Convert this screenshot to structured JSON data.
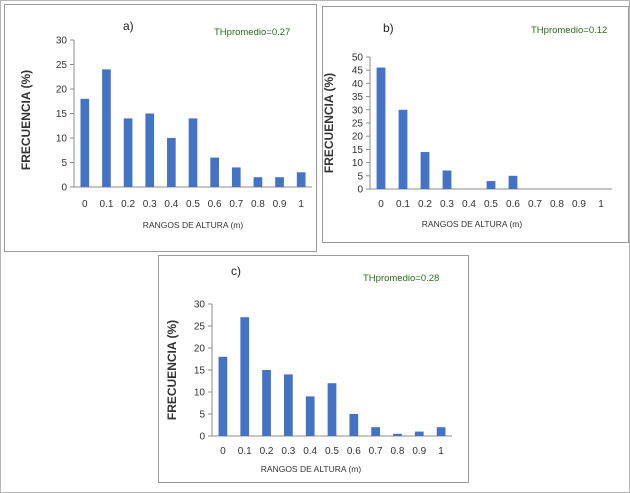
{
  "chart_data": [
    {
      "type": "bar",
      "panel_label": "a)",
      "annotation": "THpromedio=0.27",
      "categories": [
        "0",
        "0.1",
        "0.2",
        "0.3",
        "0.4",
        "0.5",
        "0.6",
        "0.7",
        "0.8",
        "0.9",
        "1"
      ],
      "values": [
        18,
        24,
        14,
        15,
        10,
        14,
        6,
        4,
        2,
        2,
        3
      ],
      "ylabel": "FRECUENCIA (%)",
      "xlabel": "RANGOS DE ALTURA (m)",
      "ylim": [
        0,
        30
      ],
      "yticks": [
        "0",
        "5",
        "10",
        "15",
        "20",
        "25",
        "30"
      ],
      "grid": false,
      "bar_color": "#4472c4",
      "annotation_color": "#2e6b1f"
    },
    {
      "type": "bar",
      "panel_label": "b)",
      "annotation": "THpromedio=0.12",
      "categories": [
        "0",
        "0.1",
        "0.2",
        "0.3",
        "0.4",
        "0.5",
        "0.6",
        "0.7",
        "0.8",
        "0.9",
        "1"
      ],
      "values": [
        46,
        30,
        14,
        7,
        0,
        3,
        5,
        0,
        0,
        0,
        0
      ],
      "ylabel": "FRECUENCIA (%)",
      "xlabel": "RANGOS DE ALTURA (m)",
      "ylim": [
        0,
        50
      ],
      "yticks": [
        "0",
        "5",
        "10",
        "15",
        "20",
        "25",
        "30",
        "35",
        "40",
        "45",
        "50"
      ],
      "grid": false,
      "bar_color": "#4472c4",
      "annotation_color": "#2e6b1f"
    },
    {
      "type": "bar",
      "panel_label": "c)",
      "annotation": "THpromedio=0.28",
      "categories": [
        "0",
        "0.1",
        "0.2",
        "0.3",
        "0.4",
        "0.5",
        "0.6",
        "0.7",
        "0.8",
        "0.9",
        "1"
      ],
      "values": [
        18,
        27,
        15,
        14,
        9,
        12,
        5,
        2,
        0.5,
        1,
        2
      ],
      "ylabel": "FRECUENCIA (%)",
      "xlabel": "RANGOS DE ALTURA (m)",
      "ylim": [
        0,
        30
      ],
      "yticks": [
        "0",
        "5",
        "10",
        "15",
        "20",
        "25",
        "30"
      ],
      "grid": false,
      "bar_color": "#4472c4",
      "annotation_color": "#2e6b1f"
    }
  ]
}
